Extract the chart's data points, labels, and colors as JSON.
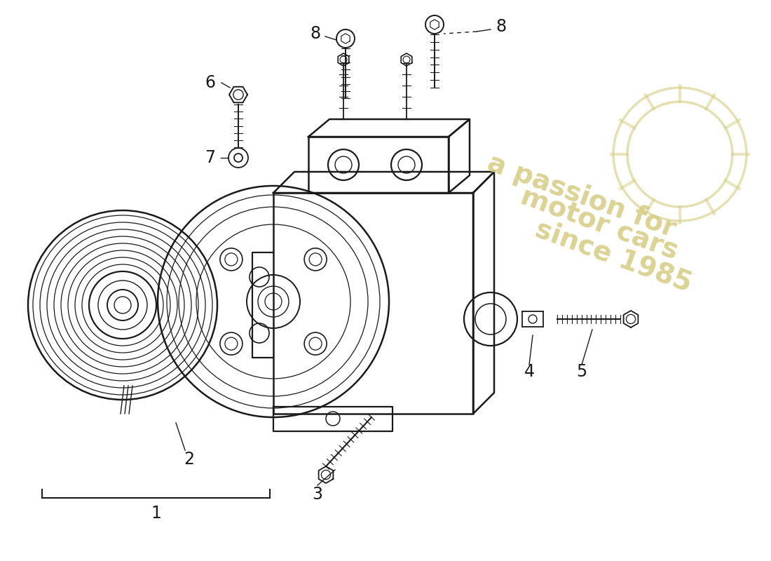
{
  "background_color": "#ffffff",
  "line_color": "#1a1a1a",
  "text_color": "#1a1a1a",
  "watermark_color": "#d4cc80",
  "watermark_text1": "a passion for",
  "watermark_text2": "motor cars",
  "watermark_text3": "since 1985"
}
